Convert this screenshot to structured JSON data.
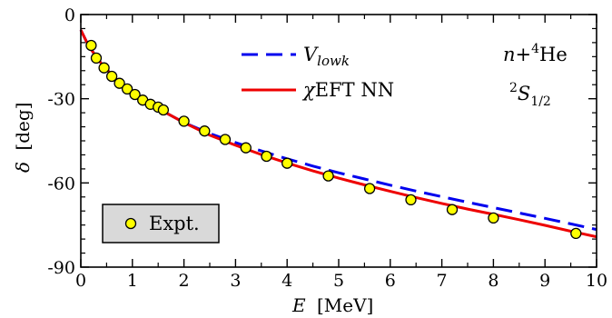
{
  "chart_data": {
    "type": "line",
    "title": "",
    "xlabel": {
      "var": "E",
      "unit": "[MeV]"
    },
    "ylabel": {
      "var": "δ",
      "unit": "[deg]"
    },
    "xlim": [
      0,
      10
    ],
    "ylim": [
      -90,
      0
    ],
    "x_ticks": [
      "0",
      "1",
      "2",
      "3",
      "4",
      "5",
      "6",
      "7",
      "8",
      "9",
      "10"
    ],
    "y_ticks": [
      "0",
      "-30",
      "-60",
      "-90"
    ],
    "annotations": {
      "system": {
        "base": "n+",
        "sup": "4",
        "rest": "He"
      },
      "wave": {
        "sup": "2",
        "base": "S",
        "sub": "1/2"
      }
    },
    "legend_placement": "top-center",
    "series": [
      {
        "name": {
          "base": "V",
          "sub": "lowk"
        },
        "style": "dashed",
        "color": "#0000ee",
        "x": [
          0.0,
          0.1,
          0.2,
          0.4,
          0.6,
          0.8,
          1.0,
          1.5,
          2.0,
          2.5,
          3.0,
          3.5,
          4.0,
          4.5,
          5.0,
          5.5,
          6.0,
          6.5,
          7.0,
          7.5,
          8.0,
          8.5,
          9.0,
          9.5,
          10.0
        ],
        "y": [
          -5.5,
          -9.3,
          -12.5,
          -17.5,
          -21.5,
          -24.8,
          -27.6,
          -33.5,
          -38.5,
          -42.4,
          -45.6,
          -48.6,
          -51.4,
          -54.0,
          -56.4,
          -58.6,
          -60.8,
          -62.9,
          -64.9,
          -66.9,
          -68.8,
          -70.7,
          -72.6,
          -74.6,
          -76.6
        ]
      },
      {
        "name": {
          "pre": "χ",
          "base": "EFT NN"
        },
        "style": "solid",
        "color": "#ee0000",
        "x": [
          0.0,
          0.1,
          0.2,
          0.4,
          0.6,
          0.8,
          1.0,
          1.5,
          2.0,
          2.5,
          3.0,
          3.5,
          4.0,
          4.5,
          5.0,
          5.5,
          6.0,
          6.5,
          7.0,
          7.5,
          8.0,
          8.5,
          9.0,
          9.5,
          10.0
        ],
        "y": [
          -5.5,
          -9.3,
          -12.5,
          -17.5,
          -21.5,
          -24.8,
          -27.6,
          -33.5,
          -38.5,
          -43.0,
          -46.6,
          -49.9,
          -52.9,
          -55.7,
          -58.3,
          -60.7,
          -63.0,
          -65.2,
          -67.3,
          -69.3,
          -71.2,
          -73.1,
          -75.1,
          -77.2,
          -79.2
        ]
      },
      {
        "name": "Expt.",
        "style": "markers",
        "color": "#ffff00",
        "x": [
          0.2,
          0.3,
          0.45,
          0.6,
          0.75,
          0.9,
          1.05,
          1.2,
          1.35,
          1.5,
          1.6,
          2.0,
          2.4,
          2.8,
          3.2,
          3.6,
          4.0,
          4.8,
          5.6,
          6.4,
          7.2,
          8.0,
          9.6
        ],
        "y": [
          -11.0,
          -15.5,
          -19.0,
          -22.0,
          -24.5,
          -26.5,
          -28.5,
          -30.5,
          -32.0,
          -33.0,
          -34.0,
          -38.0,
          -41.5,
          -44.5,
          -47.5,
          -50.5,
          -53.0,
          -57.5,
          -62.0,
          -66.0,
          -69.5,
          -72.5,
          -78.0
        ]
      }
    ]
  }
}
